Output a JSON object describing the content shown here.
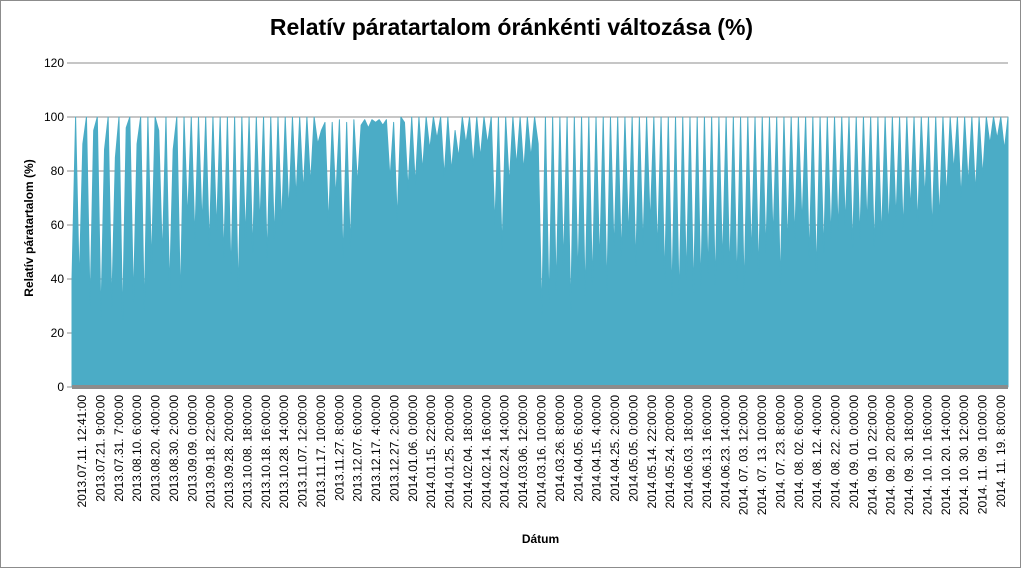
{
  "chart_data": {
    "type": "area",
    "title": "Relatív páratartalom óránkénti változása (%)",
    "xlabel": "Dátum",
    "ylabel": "Relatív páratartalom (%)",
    "ylim": [
      0,
      120
    ],
    "yticks": [
      0,
      20,
      40,
      60,
      80,
      100,
      120
    ],
    "grid": "horizontal",
    "legend": "none",
    "color": "#4bacc6",
    "x_tick_labels": [
      "2013.07.11. 12:41:00",
      "2013.07.21. 9:00:00",
      "2013.07.31. 7:00:00",
      "2013.08.10. 6:00:00",
      "2013.08.20. 4:00:00",
      "2013.08.30. 2:00:00",
      "2013.09.09. 0:00:00",
      "2013.09.18. 22:00:00",
      "2013.09.28. 20:00:00",
      "2013.10.08. 18:00:00",
      "2013.10.18. 16:00:00",
      "2013.10.28. 14:00:00",
      "2013.11.07. 12:00:00",
      "2013.11.17. 10:00:00",
      "2013.11.27. 8:00:00",
      "2013.12.07. 6:00:00",
      "2013.12.17. 4:00:00",
      "2013.12.27. 2:00:00",
      "2014.01.06. 0:00:00",
      "2014.01.15. 22:00:00",
      "2014.01.25. 20:00:00",
      "2014.02.04. 18:00:00",
      "2014.02.14. 16:00:00",
      "2014.02.24. 14:00:00",
      "2014.03.06. 12:00:00",
      "2014.03.16. 10:00:00",
      "2014.03.26. 8:00:00",
      "2014.04.05. 6:00:00",
      "2014.04.15. 4:00:00",
      "2014.04.25. 2:00:00",
      "2014.05.05. 0:00:00",
      "2014.05.14. 22:00:00",
      "2014.05.24. 20:00:00",
      "2014.06.03. 18:00:00",
      "2014.06.13. 16:00:00",
      "2014.06.23. 14:00:00",
      "2014. 07. 03. 12:00:00",
      "2014. 07. 13. 10:00:00",
      "2014. 07. 23. 8:00:00",
      "2014. 08. 02. 6:00:00",
      "2014. 08. 12. 4:00:00",
      "2014. 08. 22. 2:00:00",
      "2014. 09. 01. 0:00:00",
      "2014. 09. 10. 22:00:00",
      "2014. 09. 20. 20:00:00",
      "2014. 09. 30. 18:00:00",
      "2014. 10. 10. 16:00:00",
      "2014. 10. 20. 14:00:00",
      "2014. 10. 30. 12:00:00",
      "2014. 11. 09. 10:00:00",
      "2014. 11. 19. 8:00:00"
    ],
    "series": [
      {
        "values": [
          40,
          100,
          38,
          90,
          100,
          30,
          95,
          100,
          26,
          88,
          100,
          30,
          85,
          100,
          25,
          96,
          100,
          32,
          90,
          100,
          28,
          100,
          45,
          100,
          95,
          48,
          100,
          36,
          88,
          100,
          32,
          100,
          62,
          100,
          55,
          100,
          60,
          100,
          52,
          100,
          58,
          100,
          48,
          100,
          42,
          100,
          35,
          100,
          55,
          100,
          50,
          100,
          60,
          100,
          48,
          100,
          55,
          100,
          60,
          100,
          65,
          100,
          70,
          100,
          72,
          100,
          75,
          100,
          90,
          95,
          98,
          60,
          98,
          70,
          99,
          48,
          98,
          52,
          99,
          75,
          97,
          99,
          96,
          99,
          98,
          99,
          97,
          99,
          77,
          98,
          62,
          100,
          98,
          73,
          100,
          75,
          100,
          80,
          100,
          88,
          100,
          92,
          100,
          78,
          100,
          80,
          95,
          85,
          100,
          90,
          100,
          82,
          100,
          85,
          100,
          90,
          100,
          60,
          100,
          51,
          100,
          75,
          100,
          82,
          100,
          80,
          100,
          85,
          100,
          90,
          27,
          100,
          30,
          100,
          36,
          100,
          45,
          100,
          28,
          100,
          40,
          100,
          34,
          100,
          38,
          100,
          45,
          100,
          36,
          100,
          50,
          100,
          48,
          100,
          55,
          100,
          45,
          100,
          52,
          100,
          60,
          100,
          50,
          100,
          40,
          100,
          34,
          100,
          32,
          100,
          40,
          100,
          35,
          100,
          37,
          100,
          42,
          100,
          38,
          100,
          45,
          100,
          42,
          100,
          38,
          100,
          36,
          100,
          48,
          100,
          42,
          100,
          50,
          100,
          55,
          100,
          38,
          100,
          52,
          100,
          55,
          100,
          60,
          100,
          48,
          100,
          42,
          100,
          50,
          100,
          55,
          100,
          58,
          100,
          60,
          100,
          52,
          100,
          55,
          100,
          60,
          100,
          52,
          100,
          55,
          100,
          58,
          100,
          62,
          100,
          58,
          100,
          65,
          100,
          60,
          100,
          70,
          100,
          58,
          100,
          62,
          100,
          70,
          100,
          80,
          100,
          70,
          100,
          75,
          100,
          72,
          100,
          78,
          100,
          90,
          100,
          92,
          100,
          88,
          100
        ]
      }
    ]
  }
}
